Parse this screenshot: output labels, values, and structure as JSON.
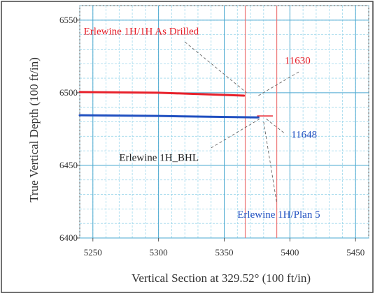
{
  "chart_data": {
    "type": "line",
    "title": "",
    "xlabel": "Vertical Section at 329.52° (100 ft/in)",
    "ylabel": "True Vertical Depth (100 ft/in)",
    "xlim": [
      5240,
      5460
    ],
    "ylim": [
      6400,
      6560
    ],
    "x_ticks": [
      5250,
      5300,
      5350,
      5400,
      5450
    ],
    "y_ticks": [
      6400,
      6450,
      6500,
      6550
    ],
    "grid": true,
    "series": [
      {
        "name": "Erlewine 1H/1H As Drilled",
        "color": "#e8202a",
        "x": [
          5240,
          5300,
          5365
        ],
        "y": [
          6500.5,
          6500,
          6498
        ]
      },
      {
        "name": "Erlewine 1H/Plan 5",
        "color": "#1f4fc0",
        "x": [
          5240,
          5300,
          5376
        ],
        "y": [
          6484.5,
          6484,
          6483
        ]
      }
    ],
    "reference_lines": [
      {
        "axis": "x",
        "value": 5366,
        "color": "#ee7777"
      },
      {
        "axis": "x",
        "value": 5390,
        "color": "#ee7777"
      },
      {
        "axis": "y",
        "value": 6484,
        "x_from": 5375,
        "x_to": 5387,
        "color": "#e8202a"
      }
    ],
    "annotations": [
      {
        "text": "Erlewine 1H/1H As Drilled",
        "color": "#e8202a",
        "x": 5243,
        "y": 6540
      },
      {
        "text": "11630",
        "color": "#e8202a",
        "x": 5396,
        "y": 6520
      },
      {
        "text": "11648",
        "color": "#1f4fc0",
        "x": 5401,
        "y": 6469
      },
      {
        "text": "Erlewine 1H_BHL",
        "color": "#222222",
        "x": 5270,
        "y": 6453
      },
      {
        "text": "Erlewine 1H/Plan 5",
        "color": "#1f4fc0",
        "x": 5360,
        "y": 6414
      }
    ],
    "leaders": [
      {
        "from": [
          5320,
          6535
        ],
        "to": [
          5367,
          6500
        ]
      },
      {
        "from": [
          5376,
          6498
        ],
        "to": [
          5408,
          6515
        ]
      },
      {
        "from": [
          5340,
          6462
        ],
        "to": [
          5377,
          6482
        ]
      },
      {
        "from": [
          5382,
          6482
        ],
        "to": [
          5396,
          6472
        ]
      },
      {
        "from": [
          5380,
          6480
        ],
        "to": [
          5390,
          6424
        ]
      }
    ]
  }
}
